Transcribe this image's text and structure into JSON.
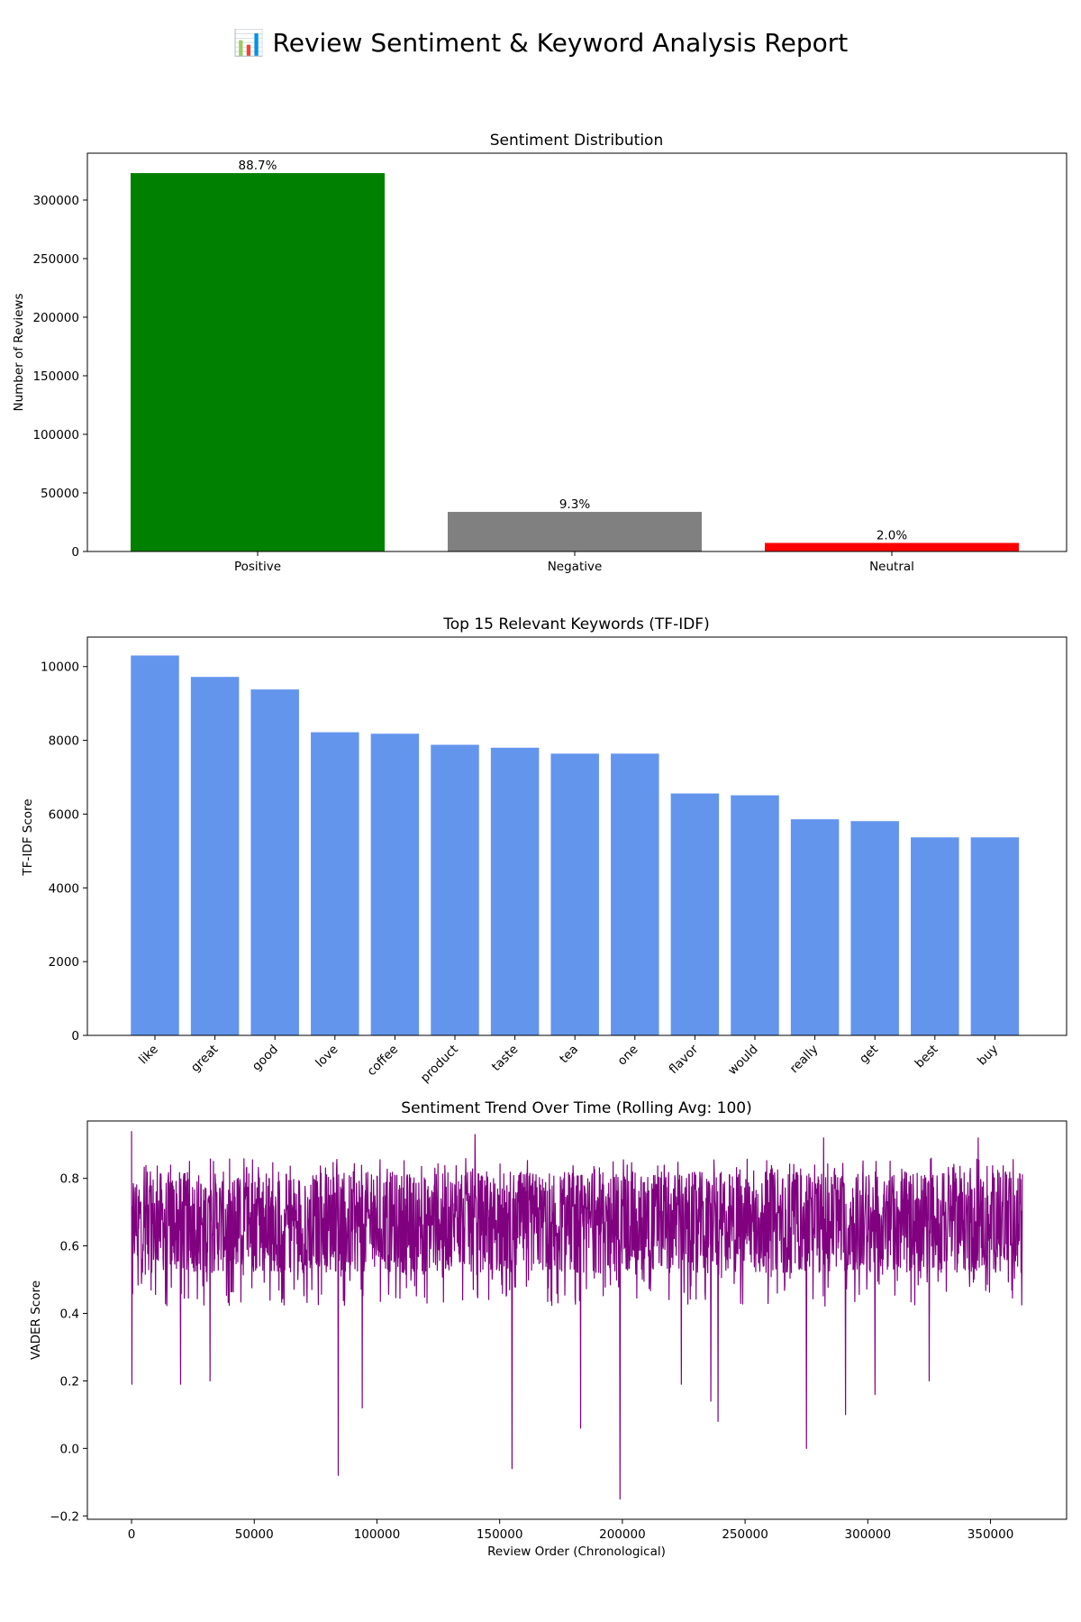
{
  "page": {
    "title": "📊 Review Sentiment & Keyword Analysis Report"
  },
  "chart_data": [
    {
      "type": "bar",
      "title": "Sentiment Distribution",
      "xlabel": "",
      "ylabel": "Number of Reviews",
      "categories": [
        "Positive",
        "Negative",
        "Neutral"
      ],
      "values": [
        323000,
        33800,
        7300
      ],
      "labels": [
        "88.7%",
        "9.3%",
        "2.0%"
      ],
      "colors": [
        "#008000",
        "#808080",
        "#ff0000"
      ],
      "ylim": [
        0,
        340000
      ],
      "yticks": [
        0,
        50000,
        100000,
        150000,
        200000,
        250000,
        300000
      ],
      "ytick_labels": [
        "0",
        "50000",
        "100000",
        "150000",
        "200000",
        "250000",
        "300000"
      ],
      "grid": false
    },
    {
      "type": "bar",
      "title": "Top 15 Relevant Keywords (TF-IDF)",
      "xlabel": "",
      "ylabel": "TF-IDF Score",
      "categories": [
        "like",
        "great",
        "good",
        "love",
        "coffee",
        "product",
        "taste",
        "tea",
        "one",
        "flavor",
        "would",
        "really",
        "get",
        "best",
        "buy"
      ],
      "values": [
        10300,
        9720,
        9380,
        8220,
        8180,
        7880,
        7800,
        7640,
        7640,
        6560,
        6510,
        5860,
        5810,
        5370,
        5370
      ],
      "color": "#6495ed",
      "ylim": [
        0,
        10800
      ],
      "yticks": [
        0,
        2000,
        4000,
        6000,
        8000,
        10000
      ],
      "ytick_labels": [
        "0",
        "2000",
        "4000",
        "6000",
        "8000",
        "10000"
      ],
      "xtick_rotation": -45,
      "grid": false
    },
    {
      "type": "line",
      "title": "Sentiment Trend Over Time (Rolling Avg: 100)",
      "xlabel": "Review Order (Chronological)",
      "ylabel": "VADER Score",
      "series": [
        {
          "color": "#800080",
          "x": [
            0,
            363000
          ],
          "band": {
            "low": 0.54,
            "high": 0.8,
            "center": 0.67
          },
          "spikes": [
            {
              "x": 0,
              "y": 0.94
            },
            {
              "x": 200,
              "y": 0.19
            },
            {
              "x": 20000,
              "y": 0.19
            },
            {
              "x": 32000,
              "y": 0.2
            },
            {
              "x": 84200,
              "y": -0.08
            },
            {
              "x": 94000,
              "y": 0.12
            },
            {
              "x": 140000,
              "y": 0.93
            },
            {
              "x": 155000,
              "y": -0.06
            },
            {
              "x": 183000,
              "y": 0.06
            },
            {
              "x": 199000,
              "y": -0.15
            },
            {
              "x": 224000,
              "y": 0.19
            },
            {
              "x": 236000,
              "y": 0.14
            },
            {
              "x": 239000,
              "y": 0.08
            },
            {
              "x": 275000,
              "y": 0.0
            },
            {
              "x": 282000,
              "y": 0.92
            },
            {
              "x": 291000,
              "y": 0.1
            },
            {
              "x": 303000,
              "y": 0.16
            },
            {
              "x": 325000,
              "y": 0.2
            },
            {
              "x": 345000,
              "y": 0.92
            }
          ]
        }
      ],
      "xlim": [
        -18000,
        381000
      ],
      "ylim": [
        -0.21,
        0.97
      ],
      "xticks": [
        0,
        50000,
        100000,
        150000,
        200000,
        250000,
        300000,
        350000
      ],
      "xtick_labels": [
        "0",
        "50000",
        "100000",
        "150000",
        "200000",
        "250000",
        "300000",
        "350000"
      ],
      "yticks": [
        -0.2,
        0.0,
        0.2,
        0.4,
        0.6,
        0.8
      ],
      "ytick_labels": [
        "−0.2",
        "0.0",
        "0.2",
        "0.4",
        "0.6",
        "0.8"
      ],
      "grid": false
    }
  ]
}
